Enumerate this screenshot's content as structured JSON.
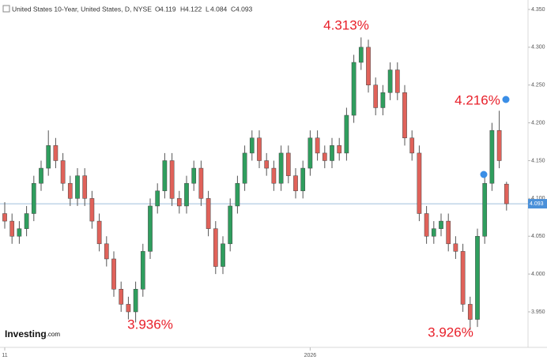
{
  "chart_data": {
    "type": "candlestick",
    "title": "United States 10-Year, United States, D, NYSE",
    "ohlc_labels": [
      "O",
      "H",
      "L",
      "C"
    ],
    "logo": {
      "brand": "Investing",
      "suffix": ".com"
    },
    "annotations": [
      "4.313%",
      "3.936%",
      "3.926%",
      "4.216%"
    ],
    "categories": [
      "11",
      null,
      null,
      null,
      null,
      null,
      null,
      null,
      null,
      null,
      null,
      null,
      null,
      null,
      null,
      null,
      null,
      null,
      null,
      null,
      null,
      null,
      null,
      null,
      null,
      null,
      null,
      null,
      null,
      null,
      null,
      null,
      null,
      null,
      null,
      null,
      null,
      null,
      null,
      null,
      null,
      null,
      "2026",
      null,
      null,
      null,
      null,
      null,
      null,
      null,
      null,
      null,
      null,
      null,
      null,
      null,
      null,
      null,
      null,
      null,
      null,
      null,
      null,
      null,
      null,
      null,
      null,
      null,
      null,
      null
    ],
    "open": [
      4.08,
      4.07,
      4.05,
      4.06,
      4.08,
      4.12,
      4.14,
      4.17,
      4.15,
      4.12,
      4.1,
      4.13,
      4.1,
      4.07,
      4.04,
      4.02,
      3.98,
      3.96,
      3.95,
      3.98,
      4.03,
      4.09,
      4.11,
      4.15,
      4.1,
      4.09,
      4.12,
      4.14,
      4.1,
      4.06,
      4.01,
      4.04,
      4.09,
      4.12,
      4.16,
      4.18,
      4.15,
      4.14,
      4.12,
      4.16,
      4.13,
      4.11,
      4.14,
      4.18,
      4.16,
      4.15,
      4.17,
      4.16,
      4.21,
      4.28,
      4.3,
      4.25,
      4.22,
      4.24,
      4.27,
      4.24,
      4.18,
      4.16,
      4.08,
      4.05,
      4.06,
      4.07,
      4.04,
      4.03,
      3.96,
      3.94,
      4.05,
      4.12,
      4.19,
      4.119
    ],
    "high": [
      4.095,
      4.08,
      4.07,
      4.09,
      4.13,
      4.15,
      4.19,
      4.18,
      4.16,
      4.13,
      4.14,
      4.14,
      4.11,
      4.08,
      4.05,
      4.03,
      3.99,
      3.97,
      3.99,
      4.04,
      4.1,
      4.12,
      4.16,
      4.16,
      4.11,
      4.13,
      4.15,
      4.15,
      4.11,
      4.07,
      4.05,
      4.1,
      4.13,
      4.17,
      4.19,
      4.19,
      4.16,
      4.15,
      4.17,
      4.17,
      4.14,
      4.15,
      4.19,
      4.19,
      4.17,
      4.18,
      4.18,
      4.22,
      4.29,
      4.313,
      4.31,
      4.26,
      4.25,
      4.28,
      4.28,
      4.25,
      4.19,
      4.17,
      4.09,
      4.07,
      4.08,
      4.08,
      4.05,
      4.04,
      3.97,
      4.06,
      4.13,
      4.2,
      4.216,
      4.122
    ],
    "low": [
      4.06,
      4.04,
      4.04,
      4.05,
      4.07,
      4.11,
      4.13,
      4.14,
      4.11,
      4.09,
      4.09,
      4.09,
      4.06,
      4.03,
      4.01,
      3.97,
      3.95,
      3.94,
      3.936,
      3.97,
      4.02,
      4.08,
      4.1,
      4.09,
      4.08,
      4.08,
      4.11,
      4.09,
      4.05,
      4.0,
      4.0,
      4.03,
      4.08,
      4.11,
      4.15,
      4.14,
      4.13,
      4.11,
      4.11,
      4.12,
      4.1,
      4.1,
      4.13,
      4.15,
      4.14,
      4.14,
      4.15,
      4.15,
      4.2,
      4.27,
      4.24,
      4.21,
      4.21,
      4.23,
      4.23,
      4.17,
      4.15,
      4.07,
      4.04,
      4.04,
      4.05,
      4.03,
      4.02,
      3.95,
      3.926,
      3.93,
      4.04,
      4.11,
      4.14,
      4.084
    ],
    "close": [
      4.07,
      4.05,
      4.06,
      4.08,
      4.12,
      4.14,
      4.17,
      4.15,
      4.12,
      4.1,
      4.13,
      4.1,
      4.07,
      4.04,
      4.02,
      3.98,
      3.96,
      3.95,
      3.98,
      4.03,
      4.09,
      4.11,
      4.15,
      4.1,
      4.09,
      4.12,
      4.14,
      4.1,
      4.06,
      4.01,
      4.04,
      4.09,
      4.12,
      4.16,
      4.18,
      4.15,
      4.14,
      4.12,
      4.16,
      4.13,
      4.11,
      4.14,
      4.18,
      4.16,
      4.15,
      4.17,
      4.16,
      4.21,
      4.28,
      4.3,
      4.25,
      4.22,
      4.24,
      4.27,
      4.24,
      4.18,
      4.16,
      4.08,
      4.05,
      4.06,
      4.07,
      4.04,
      4.03,
      3.96,
      3.94,
      4.05,
      4.12,
      4.19,
      4.15,
      4.093
    ],
    "up_color": "#2f9e5e",
    "down_color": "#e0625a",
    "price_line_color": "#9fbfdc",
    "ylim": [
      3.903,
      4.3625
    ],
    "yticks": [
      {
        "value": 3.95,
        "label": "3.950"
      },
      {
        "value": 4.0,
        "label": "4.000"
      },
      {
        "value": 4.05,
        "label": "4.050"
      },
      {
        "value": 4.1,
        "label": "4.100"
      },
      {
        "value": 4.15,
        "label": "4.150"
      },
      {
        "value": 4.2,
        "label": "4.200"
      },
      {
        "value": 4.25,
        "label": "4.250"
      },
      {
        "value": 4.3,
        "label": "4.300"
      },
      {
        "value": 4.35,
        "label": "4.350"
      }
    ]
  }
}
